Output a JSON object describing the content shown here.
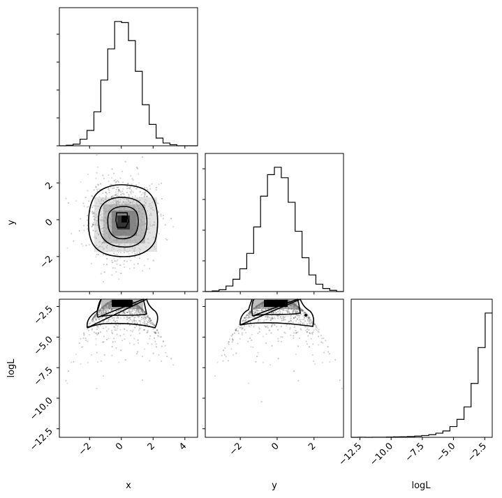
{
  "chart_data": {
    "type": "corner",
    "parameters": [
      "x",
      "y",
      "logL"
    ],
    "axis_labels": {
      "x": "x",
      "y": "y",
      "logL": "logL"
    },
    "ranges": {
      "x": [
        -3.9,
        4.8
      ],
      "y": [
        -3.9,
        3.6
      ],
      "logL": [
        -13.2,
        -1.9
      ]
    },
    "ticks": {
      "x": {
        "values": [
          -2,
          0,
          2,
          4
        ],
        "labels": [
          "−2",
          "0",
          "2",
          "4"
        ]
      },
      "y": {
        "values": [
          -2,
          0,
          2
        ],
        "labels": [
          "−2",
          "0",
          "2"
        ]
      },
      "logL": {
        "values": [
          -12.5,
          -10.0,
          -7.5,
          -5.0,
          -2.5
        ],
        "labels": [
          "−12.5",
          "−10.0",
          "−7.5",
          "−5.0",
          "−2.5"
        ]
      }
    },
    "histograms": [
      {
        "name": "x",
        "bin_edges": [
          -3.9,
          -3.465,
          -3.03,
          -2.595,
          -2.16,
          -1.725,
          -1.29,
          -0.855,
          -0.42,
          0.015,
          0.45,
          0.885,
          1.32,
          1.755,
          2.19,
          2.625,
          3.06,
          3.495,
          3.93,
          4.365,
          4.8
        ],
        "counts": [
          0,
          1,
          3,
          12,
          28,
          62,
          120,
          177,
          227,
          225,
          192,
          136,
          75,
          39,
          14,
          5,
          2,
          0,
          0,
          0
        ]
      },
      {
        "name": "y",
        "bin_edges": [
          -3.9,
          -3.525,
          -3.15,
          -2.775,
          -2.4,
          -2.025,
          -1.65,
          -1.275,
          -0.9,
          -0.525,
          -0.15,
          0.225,
          0.6,
          0.975,
          1.35,
          1.725,
          2.1,
          2.475,
          2.85,
          3.225,
          3.6
        ],
        "counts": [
          0,
          1,
          3,
          9,
          20,
          37,
          62,
          105,
          155,
          190,
          202,
          185,
          145,
          98,
          55,
          27,
          12,
          5,
          2,
          0
        ]
      },
      {
        "name": "logL",
        "bin_edges": [
          -13.2,
          -12.635,
          -12.07,
          -11.505,
          -10.94,
          -10.375,
          -9.81,
          -9.245,
          -8.68,
          -8.115,
          -7.55,
          -6.985,
          -6.42,
          -5.855,
          -5.29,
          -4.725,
          -4.16,
          -3.595,
          -3.03,
          -2.465,
          -1.9
        ],
        "counts": [
          0,
          1,
          0,
          1,
          1,
          2,
          3,
          4,
          6,
          9,
          13,
          19,
          30,
          46,
          78,
          130,
          220,
          390,
          650,
          900
        ]
      }
    ]
  }
}
